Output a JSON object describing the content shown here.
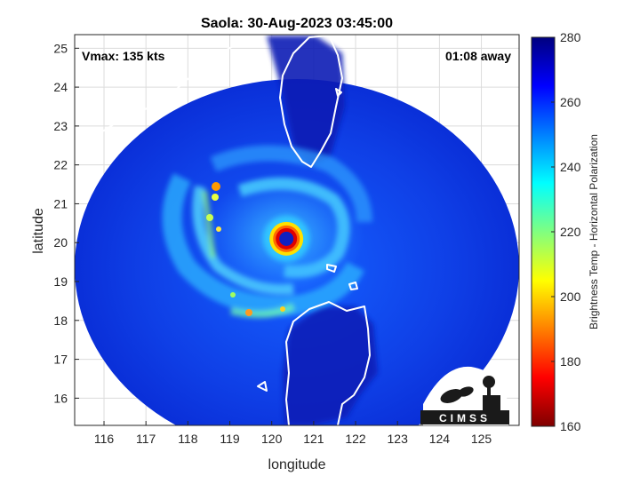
{
  "chart_data": {
    "type": "heatmap",
    "title": "Saola: 30-Aug-2023 03:45:00",
    "xlabel": "longitude",
    "ylabel": "latitude",
    "xlim": [
      115.3,
      125.9
    ],
    "ylim": [
      15.3,
      25.35
    ],
    "x_ticks": [
      116,
      117,
      118,
      119,
      120,
      121,
      122,
      123,
      124,
      125
    ],
    "y_ticks": [
      16,
      17,
      18,
      19,
      20,
      21,
      22,
      23,
      24,
      25
    ],
    "grid": true,
    "annotations": {
      "vmax": "Vmax: 135 kts",
      "time_away": "01:08 away"
    },
    "storm_center": {
      "lon": 120.35,
      "lat": 20.1
    },
    "swath_center": {
      "lon": 120.6,
      "lat": 19.9
    },
    "colorbar": {
      "label": "Brightness Temp - Horizontal Polarization",
      "range": [
        160,
        280
      ],
      "ticks": [
        160,
        180,
        200,
        220,
        240,
        260,
        280
      ],
      "colormap": [
        "#7f0000",
        "#ff0000",
        "#ff8000",
        "#ffff00",
        "#80ff80",
        "#00ffff",
        "#0080ff",
        "#0000ff",
        "#00007f"
      ]
    },
    "logo_text": "CIMSS"
  }
}
